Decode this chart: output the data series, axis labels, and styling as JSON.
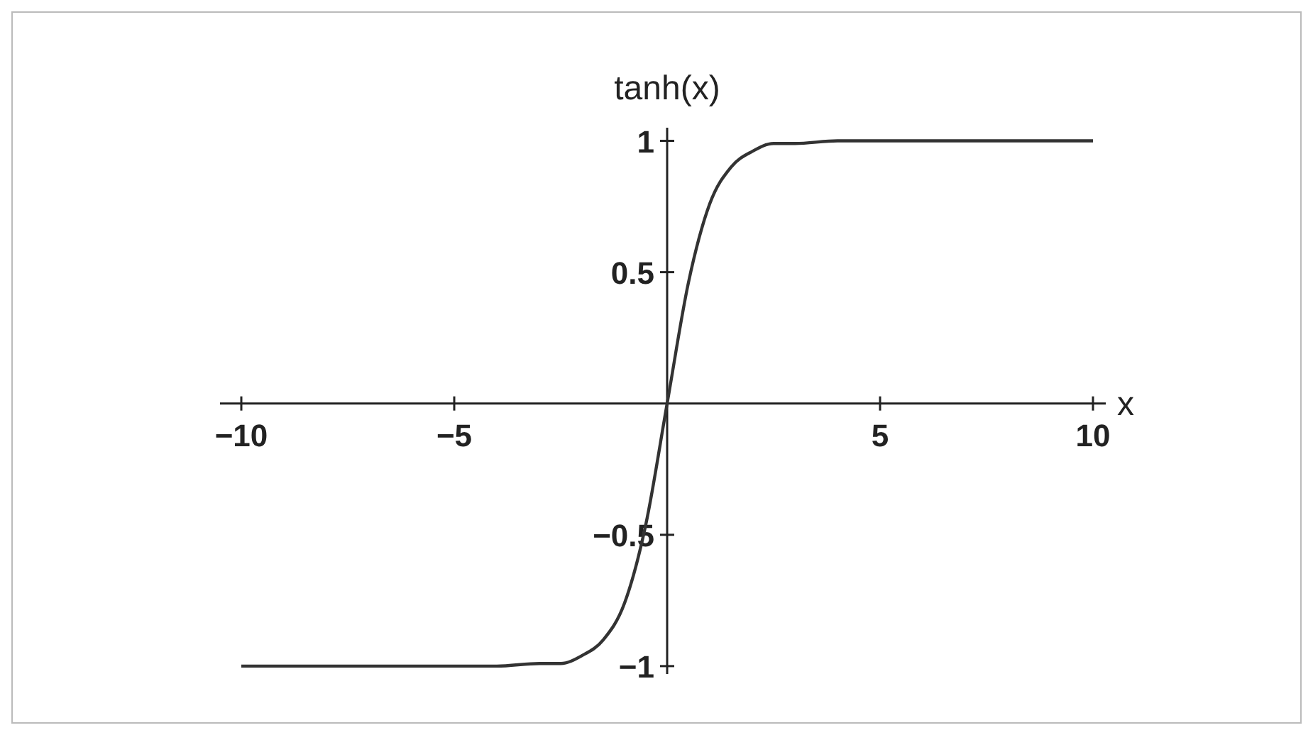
{
  "chart_data": {
    "type": "line",
    "xlabel": "x",
    "ylabel": "tanh(x)",
    "x": [
      -10,
      -4,
      -3,
      -2.5,
      -2,
      -1.5,
      -1,
      -0.5,
      0,
      0.5,
      1,
      1.5,
      2,
      2.5,
      3,
      4,
      10
    ],
    "series": [
      {
        "color": "#333333",
        "values": [
          -1,
          -1,
          -0.99,
          -0.99,
          -0.96,
          -0.9,
          -0.76,
          -0.46,
          0,
          0.46,
          0.76,
          0.9,
          0.96,
          0.99,
          0.99,
          1,
          1
        ]
      }
    ],
    "xlim": [
      -10.5,
      10.3
    ],
    "ylim": [
      -1.03,
      1.05
    ],
    "xticks": [
      {
        "value": -10,
        "label": "−10"
      },
      {
        "value": -5,
        "label": "−5"
      },
      5,
      10
    ],
    "yticks": [
      {
        "value": -1,
        "label": "−1"
      },
      {
        "value": -0.5,
        "label": "−0.5"
      },
      0.5,
      1
    ],
    "grid": false,
    "marker": "none",
    "line_style": "solid"
  }
}
